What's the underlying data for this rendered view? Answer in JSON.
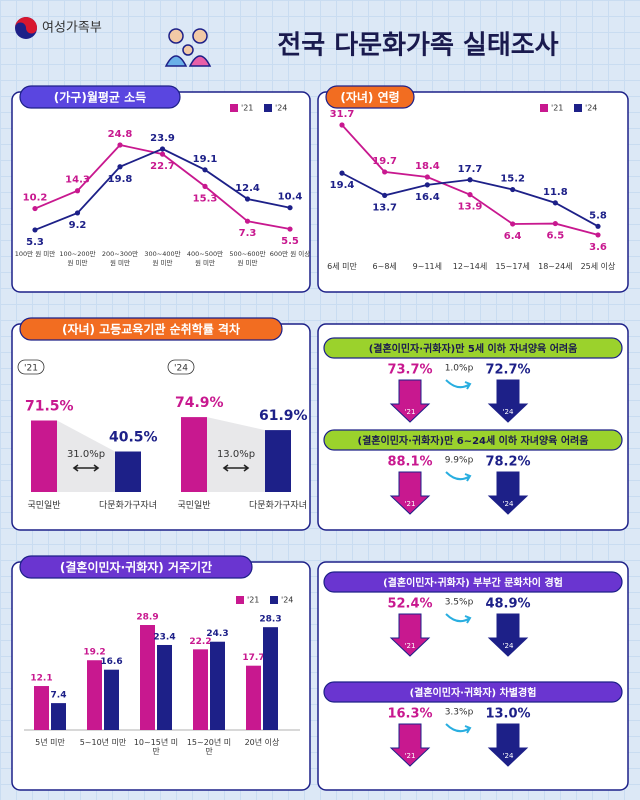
{
  "header": {
    "logo": "여성가족부",
    "title": "전국 다문화가족 실태조사"
  },
  "periods": [
    "'21",
    "'24"
  ],
  "chart_data": [
    {
      "type": "line",
      "title": "(가구)월평균 소득",
      "categories": [
        "100만 원 미만",
        "100~200만 원 미만",
        "200~300만 원 미만",
        "300~400만 원 미만",
        "400~500만 원 미만",
        "500~600만 원 미만",
        "600만 원 이상"
      ],
      "series": [
        {
          "name": "'21",
          "color": "#c8188f",
          "values": [
            10.2,
            14.3,
            24.8,
            22.7,
            15.3,
            7.3,
            5.5
          ]
        },
        {
          "name": "'24",
          "color": "#1d2088",
          "values": [
            5.3,
            9.2,
            19.8,
            23.9,
            19.1,
            12.4,
            10.4
          ]
        }
      ]
    },
    {
      "type": "line",
      "title": "(자녀) 연령",
      "categories": [
        "6세 미만",
        "6~8세",
        "9~11세",
        "12~14세",
        "15~17세",
        "18~24세",
        "25세 이상"
      ],
      "series": [
        {
          "name": "'21",
          "color": "#c8188f",
          "values": [
            31.7,
            19.7,
            18.4,
            13.9,
            6.4,
            6.5,
            3.6
          ]
        },
        {
          "name": "'24",
          "color": "#1d2088",
          "values": [
            19.4,
            13.7,
            16.4,
            17.7,
            15.2,
            11.8,
            5.8
          ]
        }
      ]
    },
    {
      "type": "gap_bar",
      "title": "(자녀) 고등교육기관 순취학률 격차",
      "categories": [
        "국민일반",
        "다문화가구자녀"
      ],
      "colors": [
        "#c8188f",
        "#1d2088"
      ],
      "groups": [
        {
          "name": "'21",
          "values": [
            71.5,
            40.5
          ],
          "value_labels": [
            "71.5%",
            "40.5%"
          ],
          "gap": 31.0,
          "gap_label": "31.0%p"
        },
        {
          "name": "'24",
          "values": [
            74.9,
            61.9
          ],
          "value_labels": [
            "74.9%",
            "61.9%"
          ],
          "gap": 13.0,
          "gap_label": "13.0%p"
        }
      ]
    },
    {
      "type": "bar",
      "title": "(결혼이민자·귀화자) 거주기간",
      "categories": [
        "5년 미만",
        "5~10년 미만",
        "10~15년 미만",
        "15~20년 미만",
        "20년 이상"
      ],
      "series": [
        {
          "name": "'21",
          "color": "#c8188f",
          "values": [
            12.1,
            19.2,
            28.9,
            22.2,
            17.7
          ]
        },
        {
          "name": "'24",
          "color": "#1d2088",
          "values": [
            7.4,
            16.6,
            23.4,
            24.3,
            28.3
          ]
        }
      ]
    }
  ],
  "comparisons": [
    {
      "title": "(결혼이민자·귀화자)만 5세 이하 자녀양육 어려움",
      "values": [
        73.7,
        72.7
      ],
      "value_labels": [
        "73.7%",
        "72.7%"
      ],
      "change": 1.0,
      "change_label": "1.0%p"
    },
    {
      "title": "(결혼이민자·귀화자)만 6~24세 이하 자녀양육 어려움",
      "values": [
        88.1,
        78.2
      ],
      "value_labels": [
        "88.1%",
        "78.2%"
      ],
      "change": 9.9,
      "change_label": "9.9%p"
    },
    {
      "title": "(결혼이민자·귀화자) 부부간 문화차이 경험",
      "values": [
        52.4,
        48.9
      ],
      "value_labels": [
        "52.4%",
        "48.9%"
      ],
      "change": 3.5,
      "change_label": "3.5%p"
    },
    {
      "title": "(결혼이민자·귀화자) 차별경험",
      "values": [
        16.3,
        13.0
      ],
      "value_labels": [
        "16.3%",
        "13.0%"
      ],
      "change": 3.3,
      "change_label": "3.3%p"
    }
  ]
}
